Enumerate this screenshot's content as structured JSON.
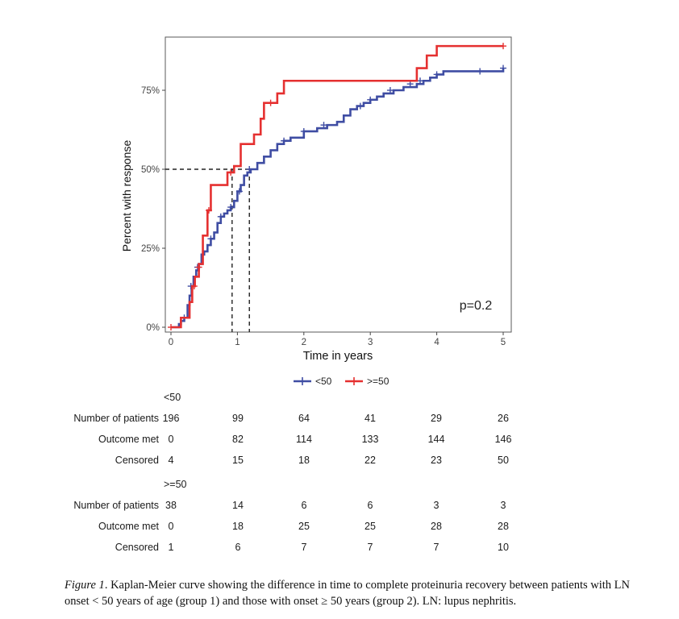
{
  "chart_data": {
    "type": "line",
    "subtype": "kaplan-meier step curve",
    "xlabel": "Time in years",
    "ylabel": "Percent with response",
    "xlim": [
      0,
      5
    ],
    "ylim": [
      0,
      0.9
    ],
    "x_ticks": [
      "0",
      "1",
      "2",
      "3",
      "4",
      "5"
    ],
    "y_ticks": [
      "0%",
      "25%",
      "50%",
      "75%"
    ],
    "annotation": "p=0.2",
    "legend_placement": "bottom",
    "median_lines": [
      {
        "x": 0.92,
        "y": 0.5
      },
      {
        "x": 1.18,
        "y": 0.5
      }
    ],
    "series": [
      {
        "name": "<50",
        "color": "#3f4da3",
        "points": [
          [
            0,
            0
          ],
          [
            0.1,
            0
          ],
          [
            0.12,
            0.01
          ],
          [
            0.15,
            0.02
          ],
          [
            0.2,
            0.03
          ],
          [
            0.25,
            0.07
          ],
          [
            0.28,
            0.1
          ],
          [
            0.31,
            0.13
          ],
          [
            0.34,
            0.16
          ],
          [
            0.38,
            0.18
          ],
          [
            0.42,
            0.2
          ],
          [
            0.46,
            0.23
          ],
          [
            0.5,
            0.24
          ],
          [
            0.55,
            0.26
          ],
          [
            0.6,
            0.28
          ],
          [
            0.65,
            0.3
          ],
          [
            0.7,
            0.33
          ],
          [
            0.75,
            0.35
          ],
          [
            0.8,
            0.36
          ],
          [
            0.85,
            0.37
          ],
          [
            0.9,
            0.38
          ],
          [
            0.95,
            0.4
          ],
          [
            1.0,
            0.43
          ],
          [
            1.05,
            0.45
          ],
          [
            1.1,
            0.48
          ],
          [
            1.15,
            0.49
          ],
          [
            1.2,
            0.5
          ],
          [
            1.3,
            0.52
          ],
          [
            1.4,
            0.54
          ],
          [
            1.5,
            0.56
          ],
          [
            1.6,
            0.58
          ],
          [
            1.7,
            0.59
          ],
          [
            1.8,
            0.6
          ],
          [
            2.0,
            0.62
          ],
          [
            2.2,
            0.63
          ],
          [
            2.35,
            0.64
          ],
          [
            2.5,
            0.65
          ],
          [
            2.6,
            0.67
          ],
          [
            2.7,
            0.69
          ],
          [
            2.8,
            0.7
          ],
          [
            2.9,
            0.71
          ],
          [
            3.0,
            0.72
          ],
          [
            3.1,
            0.73
          ],
          [
            3.2,
            0.74
          ],
          [
            3.35,
            0.75
          ],
          [
            3.5,
            0.76
          ],
          [
            3.7,
            0.77
          ],
          [
            3.8,
            0.78
          ],
          [
            3.9,
            0.79
          ],
          [
            4.0,
            0.8
          ],
          [
            4.1,
            0.81
          ],
          [
            4.5,
            0.81
          ],
          [
            4.8,
            0.81
          ],
          [
            5.0,
            0.82
          ]
        ],
        "censor_marks": [
          [
            0.2,
            0.03
          ],
          [
            0.3,
            0.13
          ],
          [
            0.4,
            0.19
          ],
          [
            0.6,
            0.28
          ],
          [
            0.75,
            0.35
          ],
          [
            0.9,
            0.38
          ],
          [
            1.03,
            0.43
          ],
          [
            1.18,
            0.5
          ],
          [
            1.7,
            0.59
          ],
          [
            2.0,
            0.62
          ],
          [
            2.3,
            0.64
          ],
          [
            2.85,
            0.7
          ],
          [
            3.0,
            0.72
          ],
          [
            3.3,
            0.75
          ],
          [
            3.6,
            0.77
          ],
          [
            3.75,
            0.78
          ],
          [
            4.0,
            0.8
          ],
          [
            4.65,
            0.81
          ],
          [
            5.0,
            0.82
          ]
        ]
      },
      {
        "name": ">=50",
        "color": "#e53030",
        "points": [
          [
            0,
            0
          ],
          [
            0.15,
            0
          ],
          [
            0.15,
            0.03
          ],
          [
            0.28,
            0.03
          ],
          [
            0.28,
            0.08
          ],
          [
            0.32,
            0.08
          ],
          [
            0.32,
            0.13
          ],
          [
            0.36,
            0.13
          ],
          [
            0.36,
            0.16
          ],
          [
            0.42,
            0.16
          ],
          [
            0.42,
            0.2
          ],
          [
            0.48,
            0.2
          ],
          [
            0.48,
            0.29
          ],
          [
            0.55,
            0.29
          ],
          [
            0.55,
            0.37
          ],
          [
            0.6,
            0.37
          ],
          [
            0.6,
            0.45
          ],
          [
            0.85,
            0.45
          ],
          [
            0.85,
            0.49
          ],
          [
            0.95,
            0.49
          ],
          [
            0.95,
            0.51
          ],
          [
            1.05,
            0.51
          ],
          [
            1.05,
            0.58
          ],
          [
            1.25,
            0.58
          ],
          [
            1.25,
            0.61
          ],
          [
            1.35,
            0.61
          ],
          [
            1.35,
            0.66
          ],
          [
            1.4,
            0.66
          ],
          [
            1.4,
            0.71
          ],
          [
            1.6,
            0.71
          ],
          [
            1.6,
            0.74
          ],
          [
            1.7,
            0.74
          ],
          [
            1.7,
            0.78
          ],
          [
            3.7,
            0.78
          ],
          [
            3.7,
            0.82
          ],
          [
            3.85,
            0.82
          ],
          [
            3.85,
            0.86
          ],
          [
            4.0,
            0.86
          ],
          [
            4.0,
            0.89
          ],
          [
            5.0,
            0.89
          ]
        ],
        "censor_marks": [
          [
            0.0,
            0.0
          ],
          [
            0.35,
            0.13
          ],
          [
            0.42,
            0.19
          ],
          [
            0.57,
            0.37
          ],
          [
            0.9,
            0.49
          ],
          [
            1.5,
            0.71
          ],
          [
            5.0,
            0.89
          ]
        ]
      }
    ]
  },
  "legend": {
    "items": [
      {
        "label": "<50",
        "color": "#3f4da3"
      },
      {
        "label": ">=50",
        "color": "#e53030"
      }
    ]
  },
  "risk_table": {
    "columns_x": [
      0,
      1,
      2,
      3,
      4,
      5
    ],
    "groups": [
      {
        "name": "<50",
        "rows": [
          {
            "label": "Number of patients",
            "values": [
              "196",
              "99",
              "64",
              "41",
              "29",
              "26"
            ]
          },
          {
            "label": "Outcome met",
            "values": [
              "0",
              "82",
              "114",
              "133",
              "144",
              "146"
            ]
          },
          {
            "label": "Censored",
            "values": [
              "4",
              "15",
              "18",
              "22",
              "23",
              "50"
            ]
          }
        ]
      },
      {
        "name": ">=50",
        "rows": [
          {
            "label": "Number of patients",
            "values": [
              "38",
              "14",
              "6",
              "6",
              "3",
              "3"
            ]
          },
          {
            "label": "Outcome met",
            "values": [
              "0",
              "18",
              "25",
              "25",
              "28",
              "28"
            ]
          },
          {
            "label": "Censored",
            "values": [
              "1",
              "6",
              "7",
              "7",
              "7",
              "10"
            ]
          }
        ]
      }
    ]
  },
  "caption": {
    "label": "Figure 1",
    "text": ". Kaplan-Meier curve showing the difference in time to complete proteinuria recovery between patients with LN onset < 50 years of age (group 1) and those with onset ≥ 50 years (group 2). LN: lupus nephritis."
  }
}
